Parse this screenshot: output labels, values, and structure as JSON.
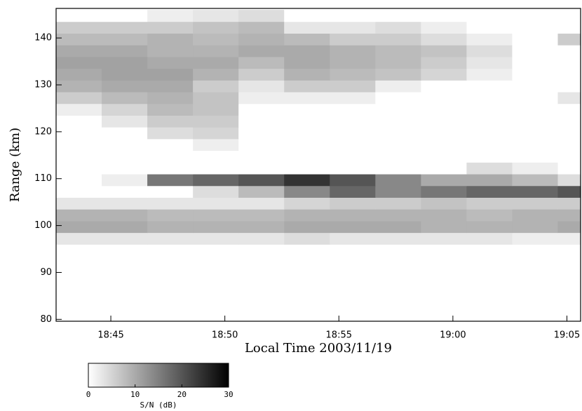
{
  "chart_data": {
    "type": "heatmap",
    "x_label": "Local Time 2003/11/19",
    "y_label": "Range (km)",
    "xlim": [
      1122.6,
      1145.6
    ],
    "ylim": [
      79.6,
      146.3
    ],
    "xticks": [
      {
        "value": 1125,
        "label": "18:45"
      },
      {
        "value": 1130,
        "label": "18:50"
      },
      {
        "value": 1135,
        "label": "18:55"
      },
      {
        "value": 1140,
        "label": "19:00"
      },
      {
        "value": 1145,
        "label": "19:05"
      }
    ],
    "yticks": [
      80,
      90,
      100,
      110,
      120,
      130,
      140
    ],
    "x_edges": [
      1122.6,
      1124.6,
      1126.6,
      1128.6,
      1130.6,
      1132.6,
      1134.6,
      1136.6,
      1138.6,
      1140.6,
      1142.6,
      1144.6,
      1145.6
    ],
    "y_edges": [
      96,
      98.5,
      101,
      103.5,
      106,
      108.5,
      111,
      113.5,
      116,
      118.5,
      121,
      123.5,
      126,
      128.5,
      131,
      133.5,
      136,
      138.5,
      141,
      143.5,
      146
    ],
    "z": [
      [
        3,
        3,
        3,
        3,
        3,
        4,
        3,
        3,
        3,
        3,
        2,
        2
      ],
      [
        10,
        10,
        9,
        9,
        9,
        10,
        10,
        10,
        9,
        9,
        9,
        10
      ],
      [
        9,
        9,
        8,
        8,
        8,
        9,
        9,
        9,
        9,
        8,
        9,
        9
      ],
      [
        3,
        3,
        3,
        3,
        3,
        5,
        6,
        6,
        7,
        6,
        6,
        6
      ],
      [
        0,
        0,
        0,
        4,
        8,
        14,
        18,
        14,
        16,
        18,
        18,
        20
      ],
      [
        0,
        2,
        16,
        18,
        20,
        24,
        20,
        14,
        10,
        10,
        8,
        4
      ],
      [
        0,
        0,
        0,
        0,
        0,
        0,
        0,
        0,
        0,
        4,
        2,
        0
      ],
      [
        0,
        0,
        0,
        0,
        0,
        0,
        0,
        0,
        0,
        0,
        0,
        0
      ],
      [
        0,
        0,
        0,
        2,
        0,
        0,
        0,
        0,
        0,
        0,
        0,
        0
      ],
      [
        0,
        0,
        4,
        5,
        0,
        0,
        0,
        0,
        0,
        0,
        0,
        0
      ],
      [
        0,
        3,
        6,
        6,
        0,
        0,
        0,
        0,
        0,
        0,
        0,
        0
      ],
      [
        2,
        5,
        8,
        7,
        0,
        0,
        0,
        0,
        0,
        0,
        0,
        0
      ],
      [
        6,
        8,
        9,
        7,
        2,
        2,
        2,
        0,
        0,
        0,
        0,
        3
      ],
      [
        9,
        10,
        10,
        6,
        3,
        6,
        6,
        2,
        0,
        0,
        0,
        0
      ],
      [
        10,
        11,
        11,
        9,
        6,
        9,
        8,
        7,
        5,
        2,
        0,
        0
      ],
      [
        11,
        11,
        10,
        10,
        8,
        10,
        9,
        8,
        6,
        3,
        0,
        0
      ],
      [
        10,
        10,
        9,
        9,
        10,
        10,
        9,
        8,
        7,
        4,
        0,
        0
      ],
      [
        8,
        8,
        9,
        8,
        9,
        8,
        6,
        6,
        4,
        2,
        0,
        6
      ],
      [
        6,
        6,
        6,
        7,
        8,
        3,
        3,
        4,
        2,
        0,
        0,
        0
      ],
      [
        0,
        0,
        2,
        3,
        4,
        0,
        0,
        0,
        0,
        0,
        0,
        0
      ]
    ],
    "colorbar": {
      "label": "S/N (dB)",
      "lim": [
        0,
        30
      ],
      "ticks": [
        0,
        10,
        20,
        30
      ]
    }
  }
}
